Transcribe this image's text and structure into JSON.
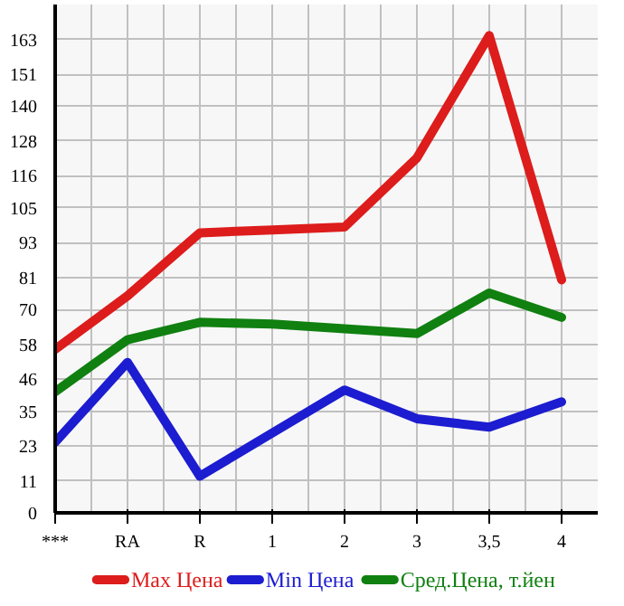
{
  "chart_data": {
    "type": "line",
    "categories": [
      "***",
      "RA",
      "R",
      "1",
      "2",
      "3",
      "3,5",
      "4"
    ],
    "series": [
      {
        "name": "Max Цена",
        "color": "#dd1c1c",
        "values": [
          56.3,
          74.7,
          96.4,
          97.4,
          98.4,
          122.2,
          164.3,
          80.2
        ]
      },
      {
        "name": "Min Цена",
        "color": "#1c1cd0",
        "values": [
          24.3,
          51.8,
          12.6,
          27.5,
          42.3,
          32.4,
          29.5,
          38.2
        ]
      },
      {
        "name": "Сред.Цена, т.йен",
        "color": "#108010",
        "values": [
          41.7,
          59.6,
          65.6,
          65.0,
          63.4,
          61.7,
          75.7,
          67.3
        ]
      }
    ],
    "ylim": [
      0,
      175
    ],
    "yticks": [
      0,
      11,
      23,
      35,
      46,
      58,
      70,
      81,
      93,
      105,
      116,
      128,
      140,
      151,
      163
    ],
    "grid": true,
    "legend": "bottom",
    "line_style": "solid",
    "marker": "none"
  }
}
